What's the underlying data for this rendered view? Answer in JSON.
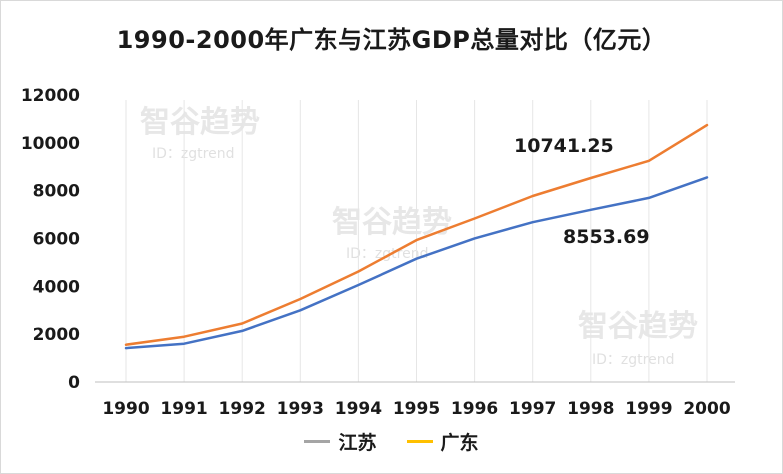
{
  "chart_data": {
    "type": "line",
    "title": "1990-2000年广东与江苏GDP总量对比（亿元）",
    "categories": [
      "1990",
      "1991",
      "1992",
      "1993",
      "1994",
      "1995",
      "1996",
      "1997",
      "1998",
      "1999",
      "2000"
    ],
    "series": [
      {
        "name": "江苏",
        "color": "#4472c4",
        "legend_color": "#a5a5a5",
        "values": [
          1417,
          1601,
          2136,
          2998,
          4057,
          5155,
          6004,
          6680,
          7200,
          7698,
          8553.69
        ]
      },
      {
        "name": "广东",
        "color": "#ed7d31",
        "legend_color": "#ffc000",
        "values": [
          1559,
          1893,
          2447,
          3469,
          4619,
          5933,
          6835,
          7775,
          8531,
          9250,
          10741.25
        ]
      }
    ],
    "yticks": [
      0,
      2000,
      4000,
      6000,
      8000,
      10000,
      12000
    ],
    "ylim": [
      0,
      12000
    ],
    "grid": "vertical",
    "legend": "bottom",
    "annotations": [
      "10741.25",
      "8553.69"
    ]
  },
  "watermark": {
    "text": "智谷趋势",
    "sub": "ID：zgtrend"
  }
}
